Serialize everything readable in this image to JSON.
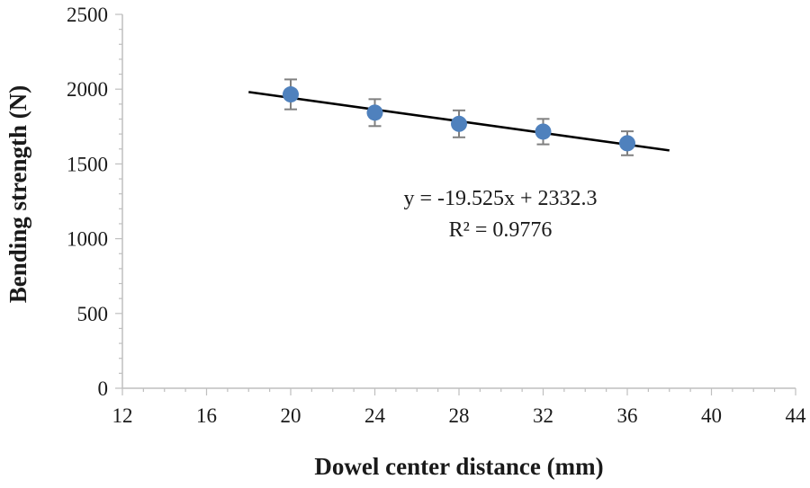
{
  "chart_data": {
    "type": "scatter",
    "xlabel": "Dowel center distance (mm)",
    "ylabel": "Bending strength (N)",
    "xlim": [
      12,
      44
    ],
    "ylim": [
      0,
      2500
    ],
    "x_ticks": [
      12,
      16,
      20,
      24,
      28,
      32,
      36,
      40,
      44
    ],
    "y_ticks": [
      0,
      500,
      1000,
      1500,
      2000,
      2500
    ],
    "grid": false,
    "series": [
      {
        "x": [
          20,
          24,
          28,
          32,
          36
        ],
        "y": [
          1965,
          1843,
          1768,
          1716,
          1638
        ],
        "error": [
          100,
          90,
          90,
          85,
          80
        ],
        "color": "#4f81bd"
      }
    ],
    "trendline": {
      "slope": -19.525,
      "intercept": 2332.3,
      "x_range": [
        18,
        38
      ],
      "color": "#000000",
      "equation": "y = -19.525x + 2332.3",
      "r_squared": "R² = 0.9776"
    }
  }
}
